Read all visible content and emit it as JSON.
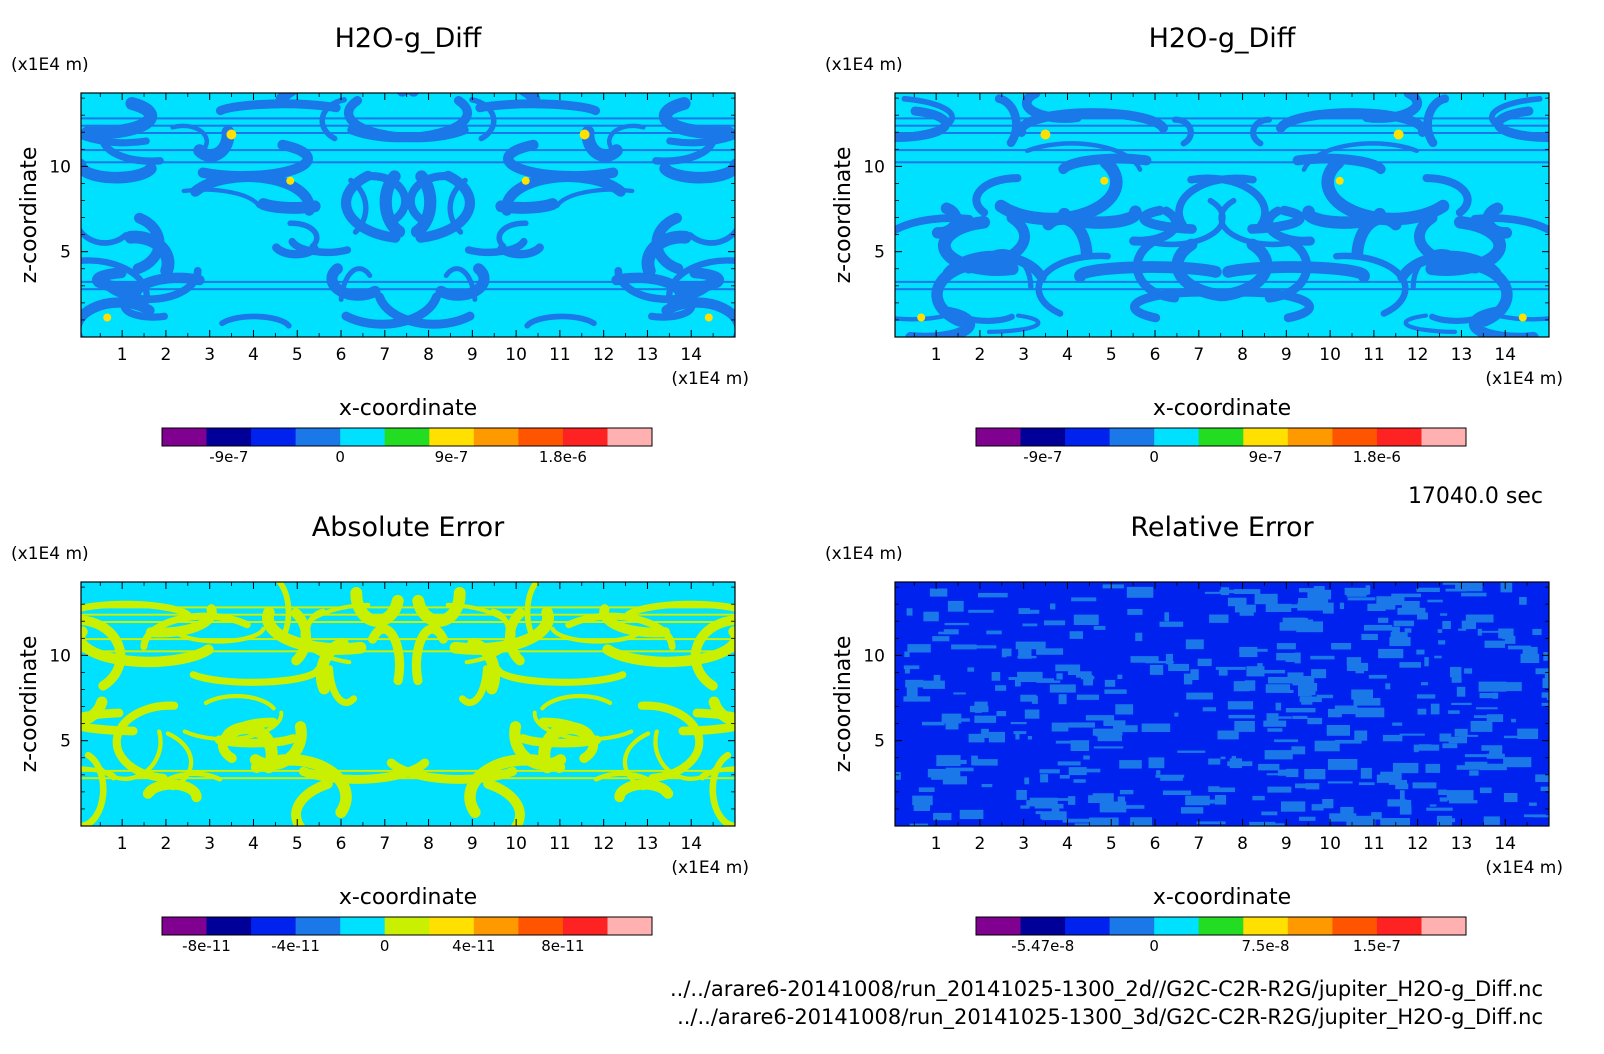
{
  "time_label": "17040.0 sec",
  "files": [
    "../../arare6-20141008/run_20141025-1300_2d//G2C-C2R-R2G/jupiter_H2O-g_Diff.nc",
    "../../arare6-20141008/run_20141025-1300_3d/G2C-C2R-R2G/jupiter_H2O-g_Diff.nc"
  ],
  "chart_data": [
    {
      "type": "heatmap",
      "title": "H2O-g_Diff",
      "xlabel": "x-coordinate",
      "ylabel": "z-coordinate",
      "x_unit": "(x1E4 m)",
      "z_unit": "(x1E4 m)",
      "xlim": [
        0.06,
        15
      ],
      "zlim": [
        0,
        14.3
      ],
      "x_ticks": [
        "1",
        "2",
        "3",
        "4",
        "5",
        "6",
        "7",
        "8",
        "9",
        "10",
        "11",
        "12",
        "13",
        "14"
      ],
      "z_ticks": [
        "5",
        "10"
      ],
      "dominant_levels": [
        "0",
        "-4.5e-7"
      ],
      "colorbar": {
        "colors": [
          "#800090",
          "#000099",
          "#0022ee",
          "#1a78e8",
          "#00e0ff",
          "#22dd22",
          "#ffe000",
          "#ff9900",
          "#ff5500",
          "#ff2222",
          "#ffb0b0"
        ],
        "labels": [
          "-9e-7",
          "0",
          "9e-7",
          "1.8e-6"
        ]
      }
    },
    {
      "type": "heatmap",
      "title": "H2O-g_Diff",
      "xlabel": "x-coordinate",
      "ylabel": "z-coordinate",
      "x_unit": "(x1E4 m)",
      "z_unit": "(x1E4 m)",
      "xlim": [
        0.06,
        15
      ],
      "zlim": [
        0,
        14.3
      ],
      "x_ticks": [
        "1",
        "2",
        "3",
        "4",
        "5",
        "6",
        "7",
        "8",
        "9",
        "10",
        "11",
        "12",
        "13",
        "14"
      ],
      "z_ticks": [
        "5",
        "10"
      ],
      "dominant_levels": [
        "0",
        "-4.5e-7"
      ],
      "colorbar": {
        "colors": [
          "#800090",
          "#000099",
          "#0022ee",
          "#1a78e8",
          "#00e0ff",
          "#22dd22",
          "#ffe000",
          "#ff9900",
          "#ff5500",
          "#ff2222",
          "#ffb0b0"
        ],
        "labels": [
          "-9e-7",
          "0",
          "9e-7",
          "1.8e-6"
        ]
      }
    },
    {
      "type": "heatmap",
      "title": "Absolute Error",
      "xlabel": "x-coordinate",
      "ylabel": "z-coordinate",
      "x_unit": "(x1E4 m)",
      "z_unit": "(x1E4 m)",
      "xlim": [
        0.06,
        15
      ],
      "zlim": [
        0,
        14.3
      ],
      "x_ticks": [
        "1",
        "2",
        "3",
        "4",
        "5",
        "6",
        "7",
        "8",
        "9",
        "10",
        "11",
        "12",
        "13",
        "14"
      ],
      "z_ticks": [
        "5",
        "10"
      ],
      "dominant_levels": [
        "0",
        "2e-11"
      ],
      "colorbar": {
        "colors": [
          "#800090",
          "#000099",
          "#0022ee",
          "#1a78e8",
          "#00e0ff",
          "#c8f000",
          "#ffe000",
          "#ff9900",
          "#ff5500",
          "#ff2222",
          "#ffb0b0"
        ],
        "labels": [
          "-8e-11",
          "-4e-11",
          "0",
          "4e-11",
          "8e-11"
        ]
      }
    },
    {
      "type": "heatmap",
      "title": "Relative Error",
      "xlabel": "x-coordinate",
      "ylabel": "z-coordinate",
      "x_unit": "(x1E4 m)",
      "z_unit": "(x1E4 m)",
      "xlim": [
        0.06,
        15
      ],
      "zlim": [
        0,
        14.3
      ],
      "x_ticks": [
        "1",
        "2",
        "3",
        "4",
        "5",
        "6",
        "7",
        "8",
        "9",
        "10",
        "11",
        "12",
        "13",
        "14"
      ],
      "z_ticks": [
        "5",
        "10"
      ],
      "dominant_levels": [
        "0",
        "3.75e-8"
      ],
      "colorbar": {
        "colors": [
          "#800090",
          "#000099",
          "#0022ee",
          "#1a78e8",
          "#00e0ff",
          "#22dd22",
          "#ffe000",
          "#ff9900",
          "#ff5500",
          "#ff2222",
          "#ffb0b0"
        ],
        "labels": [
          "-5.47e-8",
          "0",
          "7.5e-8",
          "1.5e-7"
        ]
      }
    }
  ]
}
